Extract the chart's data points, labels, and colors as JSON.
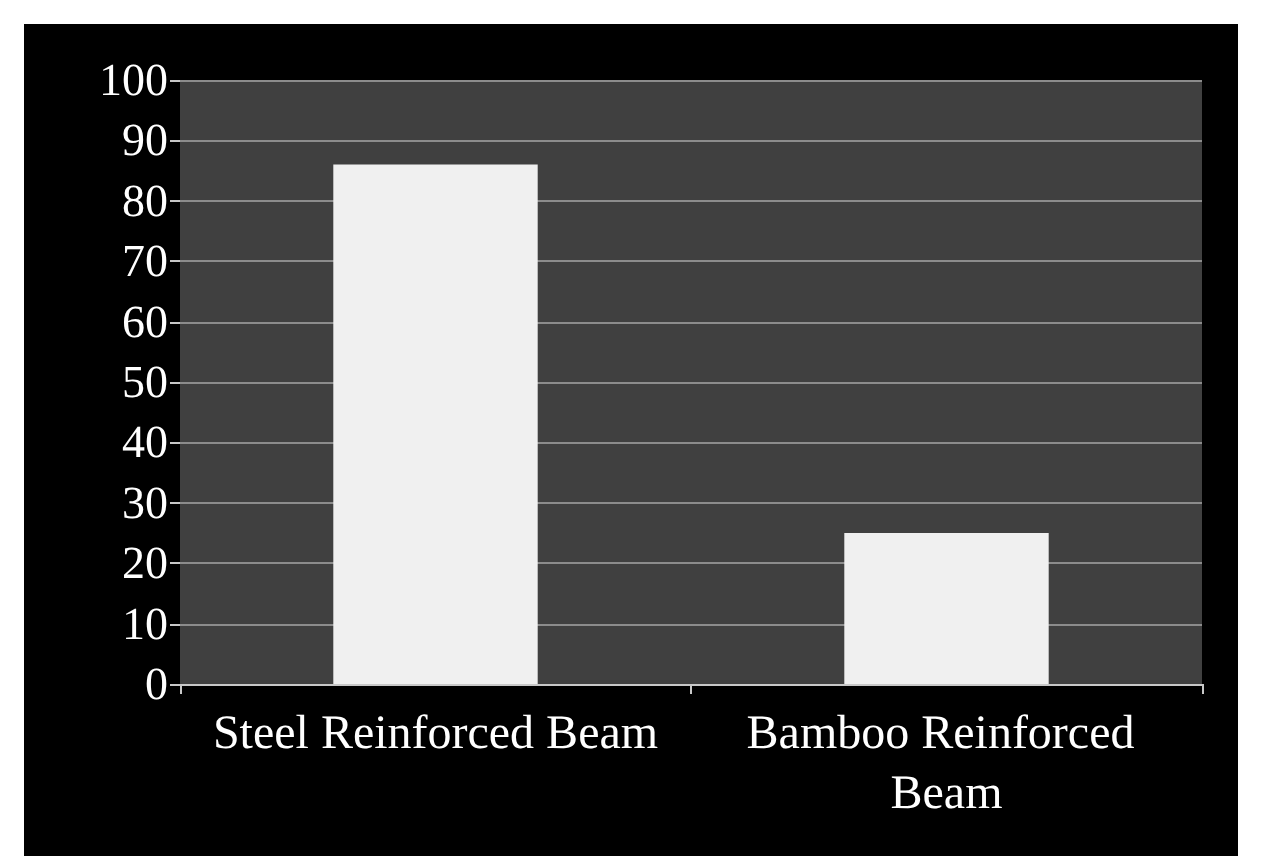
{
  "chart_data": {
    "type": "bar",
    "categories": [
      "Steel Reinforced Beam",
      "Bamboo Reinforced Beam"
    ],
    "values": [
      86,
      25
    ],
    "color": "#f0f0f0",
    "ylim": [
      0,
      100
    ],
    "yticks": [
      0,
      10,
      20,
      30,
      40,
      50,
      60,
      70,
      80,
      90,
      100
    ],
    "grid": "y"
  }
}
